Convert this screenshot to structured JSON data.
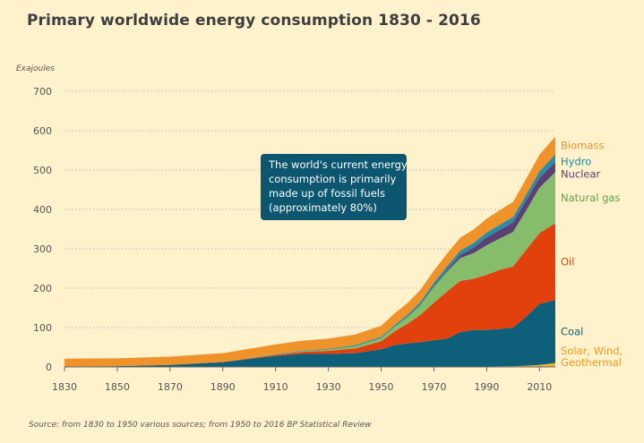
{
  "title": "Primary worldwide energy consumption 1830 - 2016",
  "source": "Source: from 1830 to 1950 various sources; from 1950 to 2016 BP Statistical Review",
  "callout": {
    "lines": [
      "The world's current energy",
      "consumption is primarily",
      "made up of fossil fuels",
      "(approximately 80%)"
    ]
  },
  "colors": {
    "coal": "#0d5f7a",
    "oil": "#e2400d",
    "natural_gas": "#86bd6b",
    "nuclear": "#5a4073",
    "hydro": "#2c8ba5",
    "biomass": "#ef9229",
    "renewables": "#f2b135",
    "callout_bg": "#0c5670",
    "grid": "#a8a8a8",
    "axis": "#555555"
  },
  "chart_data": {
    "type": "area",
    "stacked": true,
    "title": "Primary worldwide energy consumption 1830 - 2016",
    "ylabel": "Exajoules",
    "xlabel": "",
    "xlim": [
      1830,
      2016
    ],
    "ylim": [
      0,
      700
    ],
    "x_ticks": [
      1830,
      1850,
      1870,
      1890,
      1910,
      1930,
      1950,
      1970,
      1990,
      2010
    ],
    "y_ticks": [
      0,
      100,
      200,
      300,
      400,
      500,
      600,
      700
    ],
    "grid": "horizontal dotted",
    "legend": "right, labels beside series",
    "x": [
      1830,
      1850,
      1870,
      1890,
      1910,
      1920,
      1930,
      1940,
      1950,
      1955,
      1960,
      1965,
      1970,
      1975,
      1980,
      1985,
      1990,
      1995,
      2000,
      2005,
      2010,
      2016
    ],
    "series": [
      {
        "name": "Solar, Wind, Geothermal",
        "key": "renewables",
        "values": [
          0,
          0,
          0,
          0,
          0,
          0,
          0,
          0,
          0,
          0,
          0,
          0,
          0,
          0,
          0.5,
          0.8,
          1,
          1.5,
          2,
          3,
          5,
          10
        ]
      },
      {
        "name": "Coal",
        "key": "coal",
        "values": [
          1,
          2,
          5,
          12,
          28,
          33,
          33,
          35,
          45,
          55,
          60,
          63,
          68,
          72,
          88,
          93,
          93,
          95,
          98,
          125,
          155,
          160
        ]
      },
      {
        "name": "Oil",
        "key": "oil",
        "values": [
          0,
          0,
          0,
          1,
          3,
          5,
          8,
          12,
          20,
          35,
          50,
          70,
          95,
          120,
          130,
          130,
          140,
          150,
          155,
          170,
          180,
          195
        ]
      },
      {
        "name": "Natural gas",
        "key": "natural_gas",
        "values": [
          0,
          0,
          0,
          0,
          1,
          2,
          3,
          5,
          8,
          11,
          16,
          25,
          40,
          50,
          58,
          65,
          75,
          80,
          88,
          100,
          115,
          130
        ]
      },
      {
        "name": "Nuclear",
        "key": "nuclear",
        "values": [
          0,
          0,
          0,
          0,
          0,
          0,
          0,
          0,
          0,
          0,
          0.3,
          1,
          2,
          4,
          8,
          14,
          20,
          22,
          24,
          25,
          25,
          25
        ]
      },
      {
        "name": "Hydro",
        "key": "hydro",
        "values": [
          0,
          0,
          0,
          0,
          1,
          1.5,
          2,
          3,
          3.5,
          4.5,
          6,
          7,
          9,
          10,
          11,
          12,
          12.5,
          13,
          14,
          15,
          17,
          20
        ]
      },
      {
        "name": "Biomass",
        "key": "biomass",
        "values": [
          20,
          20,
          21,
          22,
          24,
          25,
          26,
          27,
          28,
          30,
          30,
          31,
          31,
          32,
          33,
          34,
          35,
          37,
          38,
          40,
          42,
          45
        ]
      }
    ]
  }
}
